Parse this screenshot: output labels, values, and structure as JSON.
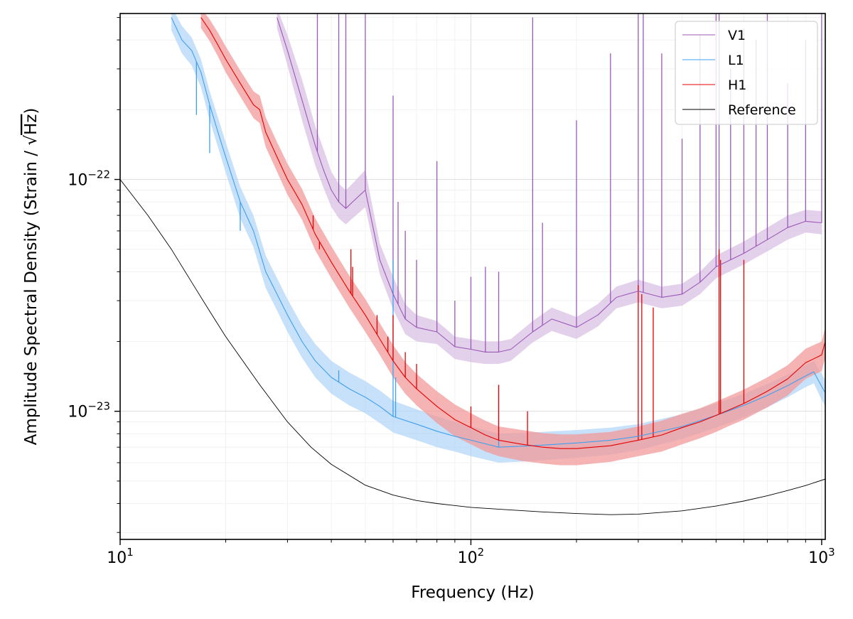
{
  "chart_data": {
    "type": "line",
    "xlabel": "Frequency (Hz)",
    "ylabel_prefix": "Amplitude Spectral Density (Strain / ",
    "ylabel_sqrt": "√",
    "ylabel_hz": "Hz",
    "ylabel_suffix": ")",
    "x_scale": "log",
    "y_scale": "log",
    "xlim": [
      10,
      1024
    ],
    "ylim": [
      2.8e-24,
      5.2e-22
    ],
    "grid": true,
    "legend_position": "top-right",
    "x_ticks": [
      {
        "value": 10,
        "base": "10",
        "exp": "1"
      },
      {
        "value": 100,
        "base": "10",
        "exp": "2"
      },
      {
        "value": 1000,
        "base": "10",
        "exp": "3"
      }
    ],
    "y_ticks": [
      {
        "value": 1e-23,
        "base": "10",
        "exp": "−23"
      },
      {
        "value": 1e-22,
        "base": "10",
        "exp": "−22"
      }
    ],
    "series": [
      {
        "name": "V1",
        "color": "#9b59b6",
        "band_color": "#d7bde2",
        "x": [
          28,
          30,
          33,
          36,
          38,
          40,
          42,
          44,
          46,
          50,
          55,
          60,
          65,
          70,
          80,
          90,
          100,
          110,
          120,
          130,
          150,
          170,
          200,
          230,
          260,
          300,
          350,
          400,
          450,
          500,
          600,
          700,
          800,
          900,
          1000
        ],
        "y": [
          5e-22,
          3.6e-22,
          2.2e-22,
          1.4e-22,
          1.1e-22,
          9e-23,
          8e-23,
          7.5e-23,
          8e-23,
          9e-23,
          4.5e-23,
          3.2e-23,
          2.5e-23,
          2.3e-23,
          2.2e-23,
          1.9e-23,
          1.85e-23,
          1.8e-23,
          1.8e-23,
          1.85e-23,
          2.2e-23,
          2.5e-23,
          2.3e-23,
          2.6e-23,
          3.1e-23,
          3.3e-23,
          3.1e-23,
          3.2e-23,
          3.6e-23,
          4.2e-23,
          4.8e-23,
          5.5e-23,
          6.2e-23,
          6.6e-23,
          6.5e-23
        ],
        "band_upper": [
          5.5e-22,
          4.2e-22,
          2.7e-22,
          1.7e-22,
          1.35e-22,
          1.08e-22,
          9.6e-23,
          9e-23,
          9.6e-23,
          1.1e-22,
          5.3e-23,
          3.8e-23,
          2.9e-23,
          2.6e-23,
          2.45e-23,
          2.1e-23,
          2.05e-23,
          2e-23,
          2e-23,
          2.05e-23,
          2.45e-23,
          2.8e-23,
          2.55e-23,
          2.9e-23,
          3.45e-23,
          3.7e-23,
          3.45e-23,
          3.55e-23,
          4e-23,
          4.7e-23,
          5.4e-23,
          6.2e-23,
          7e-23,
          7.4e-23,
          7.3e-23
        ],
        "band_lower": [
          4.5e-22,
          3.1e-22,
          1.8e-22,
          1.15e-22,
          9.2e-23,
          7.6e-23,
          6.8e-23,
          6.4e-23,
          6.8e-23,
          7.6e-23,
          3.9e-23,
          2.75e-23,
          2.15e-23,
          2e-23,
          1.95e-23,
          1.68e-23,
          1.63e-23,
          1.6e-23,
          1.6e-23,
          1.65e-23,
          1.98e-23,
          2.22e-23,
          2.05e-23,
          2.32e-23,
          2.78e-23,
          2.95e-23,
          2.78e-23,
          2.85e-23,
          3.2e-23,
          3.75e-23,
          4.3e-23,
          4.9e-23,
          5.5e-23,
          5.9e-23,
          5.8e-23
        ]
      },
      {
        "name": "L1",
        "color": "#3fa0f0",
        "band_color": "#aed4f7",
        "x": [
          14,
          15,
          16,
          17,
          18,
          19,
          20,
          22,
          24,
          26,
          28,
          30,
          33,
          36,
          40,
          45,
          50,
          55,
          60,
          70,
          80,
          90,
          100,
          120,
          150,
          200,
          250,
          300,
          400,
          500,
          600,
          700,
          800,
          900,
          950,
          1000,
          1024
        ],
        "y": [
          5e-22,
          4e-22,
          3.6e-22,
          2.9e-22,
          2.1e-22,
          1.6e-22,
          1.25e-22,
          8e-23,
          6e-23,
          4e-23,
          3.2e-23,
          2.6e-23,
          2e-23,
          1.65e-23,
          1.4e-23,
          1.25e-23,
          1.15e-23,
          1.05e-23,
          9.5e-24,
          8.8e-24,
          8.2e-24,
          7.8e-24,
          7.5e-24,
          7e-24,
          7.1e-24,
          7.3e-24,
          7.5e-24,
          7.8e-24,
          8.6e-24,
          9.6e-24,
          1.06e-23,
          1.17e-23,
          1.29e-23,
          1.42e-23,
          1.48e-23,
          1.28e-23,
          1.2e-23
        ],
        "band_upper": [
          5.6e-22,
          4.6e-22,
          4.1e-22,
          3.3e-22,
          2.4e-22,
          1.85e-22,
          1.45e-22,
          9.3e-23,
          7e-23,
          4.7e-23,
          3.75e-23,
          3.05e-23,
          2.35e-23,
          1.95e-23,
          1.65e-23,
          1.47e-23,
          1.35e-23,
          1.23e-23,
          1.11e-23,
          1.02e-23,
          9.5e-24,
          9e-24,
          8.6e-24,
          8e-24,
          8.1e-24,
          8.3e-24,
          8.5e-24,
          8.8e-24,
          9.7e-24,
          1.08e-23,
          1.19e-23,
          1.31e-23,
          1.44e-23,
          1.58e-23,
          1.65e-23,
          1.45e-23,
          1.36e-23
        ],
        "band_lower": [
          4.4e-22,
          3.5e-22,
          3.1e-22,
          2.5e-22,
          1.8e-22,
          1.38e-22,
          1.07e-22,
          6.8e-23,
          5.1e-23,
          3.4e-23,
          2.72e-23,
          2.2e-23,
          1.7e-23,
          1.4e-23,
          1.19e-23,
          1.06e-23,
          9.8e-24,
          8.9e-24,
          8.1e-24,
          7.5e-24,
          7e-24,
          6.7e-24,
          6.4e-24,
          6e-24,
          6.1e-24,
          6.3e-24,
          6.5e-24,
          6.8e-24,
          7.6e-24,
          8.5e-24,
          9.4e-24,
          1.04e-23,
          1.15e-23,
          1.27e-23,
          1.32e-23,
          1.12e-23,
          1.05e-23
        ]
      },
      {
        "name": "H1",
        "color": "#e60000",
        "band_color": "#f19a9a",
        "x": [
          17,
          18,
          19,
          20,
          22,
          24,
          25,
          26,
          28,
          30,
          33,
          36,
          40,
          45,
          50,
          55,
          60,
          65,
          70,
          80,
          90,
          100,
          110,
          120,
          140,
          160,
          180,
          200,
          250,
          300,
          350,
          400,
          450,
          500,
          550,
          600,
          650,
          700,
          800,
          900,
          1000,
          1024
        ],
        "y": [
          5e-22,
          4.4e-22,
          3.8e-22,
          3.3e-22,
          2.6e-22,
          2.1e-22,
          2e-22,
          1.6e-22,
          1.25e-22,
          1e-22,
          7.8e-23,
          5.8e-23,
          4.4e-23,
          3.3e-23,
          2.6e-23,
          2.05e-23,
          1.65e-23,
          1.4e-23,
          1.25e-23,
          1.05e-23,
          9.2e-24,
          8.5e-24,
          7.9e-24,
          7.5e-24,
          7.2e-24,
          7e-24,
          6.9e-24,
          6.9e-24,
          7.1e-24,
          7.5e-24,
          7.9e-24,
          8.5e-24,
          9e-24,
          9.6e-24,
          1.02e-23,
          1.08e-23,
          1.15e-23,
          1.22e-23,
          1.38e-23,
          1.62e-23,
          1.75e-23,
          2e-23
        ],
        "band_upper": [
          5.5e-22,
          4.9e-22,
          4.3e-22,
          3.75e-22,
          2.95e-22,
          2.4e-22,
          2.3e-22,
          1.85e-22,
          1.45e-22,
          1.17e-22,
          9.1e-23,
          6.8e-23,
          5.15e-23,
          3.85e-23,
          3.05e-23,
          2.4e-23,
          1.93e-23,
          1.63e-23,
          1.45e-23,
          1.22e-23,
          1.07e-23,
          9.8e-24,
          9.1e-24,
          8.6e-24,
          8.3e-24,
          8.05e-24,
          7.95e-24,
          7.95e-24,
          8.15e-24,
          8.6e-24,
          9.1e-24,
          9.75e-24,
          1.03e-23,
          1.1e-23,
          1.17e-23,
          1.24e-23,
          1.32e-23,
          1.4e-23,
          1.58e-23,
          1.86e-23,
          2e-23,
          2.3e-23
        ],
        "band_lower": [
          4.5e-22,
          3.95e-22,
          3.4e-22,
          2.9e-22,
          2.28e-22,
          1.84e-22,
          1.75e-22,
          1.38e-22,
          1.08e-22,
          8.6e-23,
          6.7e-23,
          4.95e-23,
          3.75e-23,
          2.8e-23,
          2.2e-23,
          1.75e-23,
          1.4e-23,
          1.19e-23,
          1.06e-23,
          8.9e-24,
          7.8e-24,
          7.2e-24,
          6.7e-24,
          6.4e-24,
          6.1e-24,
          5.95e-24,
          5.85e-24,
          5.85e-24,
          6.05e-24,
          6.4e-24,
          6.7e-24,
          7.2e-24,
          7.65e-24,
          8.15e-24,
          8.7e-24,
          9.2e-24,
          9.8e-24,
          1.04e-23,
          1.17e-23,
          1.38e-23,
          1.49e-23,
          1.7e-23
        ]
      },
      {
        "name": "Reference",
        "color": "#000000",
        "x": [
          10,
          12,
          14,
          16,
          18,
          20,
          25,
          30,
          35,
          40,
          50,
          60,
          70,
          80,
          100,
          130,
          160,
          200,
          250,
          300,
          400,
          500,
          600,
          700,
          800,
          900,
          1024
        ],
        "y": [
          1e-22,
          7e-23,
          5e-23,
          3.6e-23,
          2.7e-23,
          2.1e-23,
          1.3e-23,
          9e-24,
          7e-24,
          5.9e-24,
          4.8e-24,
          4.35e-24,
          4.12e-24,
          4e-24,
          3.85e-24,
          3.75e-24,
          3.68e-24,
          3.62e-24,
          3.58e-24,
          3.6e-24,
          3.72e-24,
          3.9e-24,
          4.1e-24,
          4.32e-24,
          4.55e-24,
          4.78e-24,
          5.1e-24
        ]
      }
    ],
    "spike_lines": [
      {
        "series": "V1",
        "x": [
          36.5,
          42,
          44,
          50,
          60,
          62,
          65,
          70,
          80,
          90,
          100,
          110,
          120,
          150,
          160,
          200,
          250,
          300,
          310,
          350,
          400,
          450,
          500,
          510,
          550,
          600,
          650,
          700,
          800,
          900,
          1000
        ],
        "top": [
          5.2e-22,
          5.2e-22,
          5.2e-22,
          5.2e-22,
          2.3e-22,
          8e-23,
          6e-23,
          4.5e-23,
          1.2e-22,
          3e-23,
          3.8e-23,
          4.2e-23,
          4e-23,
          5e-22,
          6.5e-23,
          1.8e-22,
          3.5e-22,
          5.2e-22,
          5.2e-22,
          3.5e-22,
          1.5e-22,
          4.2e-22,
          5.2e-22,
          5.2e-22,
          3e-22,
          4.5e-22,
          4e-22,
          5.2e-22,
          2.6e-22,
          4e-22,
          5.2e-22
        ]
      },
      {
        "series": "L1",
        "x": [
          16.5,
          18,
          22,
          42,
          60,
          61,
          120
        ],
        "top": [
          1.9e-22,
          1.3e-22,
          6e-23,
          1.5e-23,
          4.5e-23,
          1.4e-23,
          1.3e-23
        ]
      },
      {
        "series": "H1",
        "x": [
          35.5,
          37,
          45.5,
          46,
          54,
          58,
          60,
          65,
          70,
          100,
          120,
          145,
          300,
          307,
          331,
          510,
          515,
          600
        ],
        "top": [
          7e-23,
          5e-23,
          5e-23,
          4.2e-23,
          2.6e-23,
          2.1e-23,
          2.6e-23,
          1.8e-23,
          1.6e-23,
          1.05e-23,
          1.3e-23,
          1e-23,
          3.5e-23,
          3.2e-23,
          2.8e-23,
          5e-23,
          4.5e-23,
          4.5e-23
        ]
      }
    ]
  }
}
